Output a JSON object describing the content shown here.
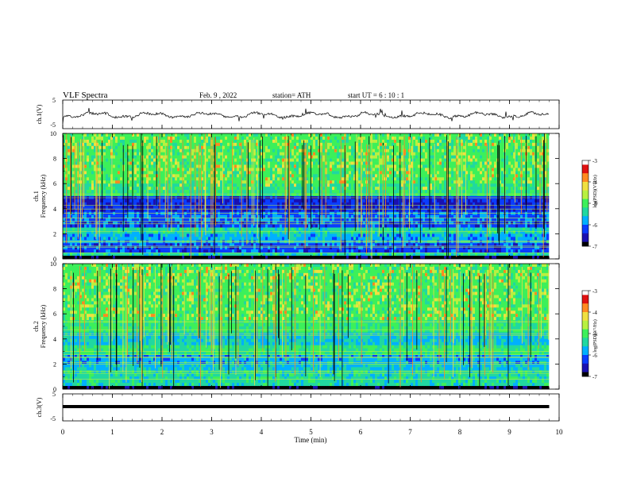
{
  "header": {
    "title": "VLF  Spectra",
    "date": "Feb. 9  , 2022",
    "station": "station= ATH",
    "start": "start  UT  =   6  : 10 : 1"
  },
  "chart_data": [
    {
      "type": "line",
      "panel": "ch1-waveform",
      "ylabel": "ch.1(V)",
      "ylim": [
        -5,
        5
      ],
      "yticks": [
        "5",
        "-5"
      ],
      "x_range_min": [
        0,
        10
      ],
      "data_end_min": 9.8
    },
    {
      "type": "heatmap",
      "panel": "ch1-spectrogram",
      "ylabel": "ch.1\nFrequency (kHz)",
      "ylabel_lines": [
        "ch.1",
        "Frequency (kHz)"
      ],
      "ylim": [
        0,
        10
      ],
      "yticks": [
        "0",
        "2",
        "4",
        "6",
        "8",
        "10"
      ],
      "colorbar": {
        "label": "log(PSD)(V²/Hz)",
        "range": [
          -7,
          -3
        ],
        "ticks": [
          "-3",
          "-4",
          "-5",
          "-6",
          "-7"
        ]
      }
    },
    {
      "type": "heatmap",
      "panel": "ch2-spectrogram",
      "ylabel_lines": [
        "ch.2",
        "Frequency (kHz)"
      ],
      "ylim": [
        0,
        10
      ],
      "yticks": [
        "0",
        "2",
        "4",
        "6",
        "8",
        "10"
      ],
      "colorbar": {
        "label": "log(PSD)(V²/Hz)",
        "range": [
          -7,
          -3
        ],
        "ticks": [
          "-3",
          "-4",
          "-5",
          "-6",
          "-7"
        ]
      }
    },
    {
      "type": "line",
      "panel": "ch3-waveform",
      "ylabel": "ch.3(V)",
      "ylim": [
        -5,
        5
      ],
      "yticks": [
        "5",
        "-5"
      ]
    }
  ],
  "x_axis": {
    "label": "Time  (min)",
    "ticks": [
      "0",
      "1",
      "2",
      "3",
      "4",
      "5",
      "6",
      "7",
      "8",
      "9",
      "10"
    ]
  },
  "colors": {
    "colormap": [
      "#000000",
      "#1a10b0",
      "#0a3cff",
      "#00b0ff",
      "#20d8a0",
      "#3cf05a",
      "#b8f040",
      "#f0e040",
      "#ff8a20",
      "#e01010",
      "#ffffff"
    ]
  }
}
